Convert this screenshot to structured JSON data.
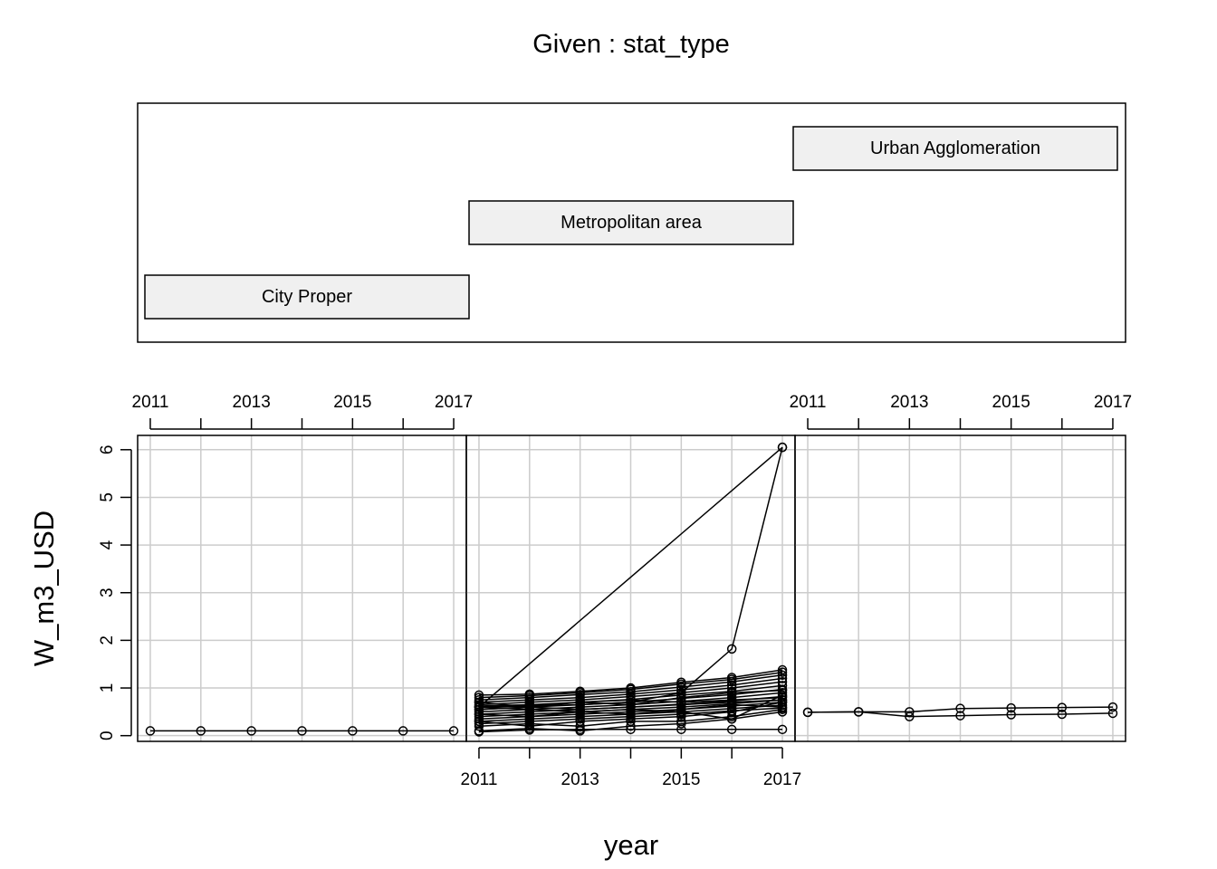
{
  "chart_data": {
    "type": "line",
    "title": "Given : stat_type",
    "xlabel": "year",
    "ylabel": "W_m3_USD",
    "x_ticks": [
      "2011",
      "2013",
      "2015",
      "2017"
    ],
    "y_ticks": [
      "0",
      "1",
      "2",
      "3",
      "4",
      "5",
      "6"
    ],
    "ylim": [
      -0.12,
      6.3
    ],
    "grid": true,
    "levels": [
      "City Proper",
      "Metropolitan area",
      "Urban Agglomeration"
    ],
    "panels": [
      {
        "label": "City Proper",
        "xlim": [
          2010.75,
          2017.25
        ],
        "series": [
          {
            "x": [
              2011,
              2012,
              2013,
              2014,
              2015,
              2016,
              2017
            ],
            "y": [
              0.1,
              0.1,
              0.1,
              0.1,
              0.1,
              0.1,
              0.1
            ]
          }
        ]
      },
      {
        "label": "Metropolitan area",
        "xlim": [
          2010.75,
          2017.25
        ],
        "series": [
          {
            "x": [
              2011,
              2017
            ],
            "y": [
              0.6,
              6.05
            ]
          },
          {
            "x": [
              2011,
              2012,
              2013,
              2014,
              2015,
              2016,
              2017
            ],
            "y": [
              0.6,
              0.62,
              0.65,
              0.7,
              0.9,
              1.82,
              6.05
            ]
          },
          {
            "x": [
              2011,
              2012,
              2013,
              2014,
              2015,
              2016,
              2017
            ],
            "y": [
              0.85,
              0.87,
              0.93,
              1.0,
              1.12,
              1.22,
              1.38
            ]
          },
          {
            "x": [
              2011,
              2012,
              2013,
              2014,
              2015,
              2016,
              2017
            ],
            "y": [
              0.8,
              0.84,
              0.9,
              0.97,
              1.08,
              1.18,
              1.33
            ]
          },
          {
            "x": [
              2011,
              2012,
              2013,
              2014,
              2015,
              2016,
              2017
            ],
            "y": [
              0.75,
              0.8,
              0.86,
              0.92,
              1.02,
              1.13,
              1.27
            ]
          },
          {
            "x": [
              2011,
              2012,
              2013,
              2014,
              2015,
              2016,
              2017
            ],
            "y": [
              0.7,
              0.75,
              0.8,
              0.87,
              0.96,
              1.06,
              1.2
            ]
          },
          {
            "x": [
              2011,
              2012,
              2013,
              2014,
              2015,
              2016,
              2017
            ],
            "y": [
              0.65,
              0.7,
              0.75,
              0.82,
              0.9,
              1.0,
              1.13
            ]
          },
          {
            "x": [
              2011,
              2012,
              2013,
              2014,
              2015,
              2016,
              2017
            ],
            "y": [
              0.6,
              0.64,
              0.7,
              0.76,
              0.85,
              0.93,
              1.05
            ]
          },
          {
            "x": [
              2011,
              2012,
              2013,
              2014,
              2015,
              2016,
              2017
            ],
            "y": [
              0.55,
              0.6,
              0.65,
              0.7,
              0.78,
              0.86,
              0.97
            ]
          },
          {
            "x": [
              2011,
              2012,
              2013,
              2014,
              2015,
              2016,
              2017
            ],
            "y": [
              0.5,
              0.55,
              0.6,
              0.65,
              0.72,
              0.8,
              0.9
            ]
          },
          {
            "x": [
              2011,
              2012,
              2013,
              2014,
              2015,
              2016,
              2017
            ],
            "y": [
              0.45,
              0.5,
              0.55,
              0.6,
              0.66,
              0.73,
              0.82
            ]
          },
          {
            "x": [
              2011,
              2012,
              2013,
              2014,
              2015,
              2016,
              2017
            ],
            "y": [
              0.4,
              0.45,
              0.5,
              0.55,
              0.6,
              0.67,
              0.75
            ]
          },
          {
            "x": [
              2011,
              2012,
              2013,
              2014,
              2015,
              2016,
              2017
            ],
            "y": [
              0.35,
              0.4,
              0.45,
              0.5,
              0.55,
              0.62,
              0.7
            ]
          },
          {
            "x": [
              2011,
              2012,
              2013,
              2014,
              2015,
              2016,
              2017
            ],
            "y": [
              0.3,
              0.35,
              0.4,
              0.45,
              0.5,
              0.57,
              0.64
            ]
          },
          {
            "x": [
              2011,
              2012,
              2013,
              2014,
              2015,
              2016,
              2017
            ],
            "y": [
              0.25,
              0.3,
              0.35,
              0.4,
              0.45,
              0.52,
              0.58
            ]
          },
          {
            "x": [
              2011,
              2012,
              2013,
              2014,
              2015,
              2016,
              2017
            ],
            "y": [
              0.6,
              0.55,
              0.5,
              0.45,
              0.55,
              0.65,
              0.6
            ]
          },
          {
            "x": [
              2011,
              2012,
              2013,
              2014,
              2015,
              2016,
              2017
            ],
            "y": [
              0.7,
              0.6,
              0.55,
              0.6,
              0.65,
              0.7,
              0.75
            ]
          },
          {
            "x": [
              2011,
              2012,
              2013,
              2014,
              2015,
              2016,
              2017
            ],
            "y": [
              0.3,
              0.2,
              0.3,
              0.35,
              0.4,
              0.5,
              0.7
            ]
          },
          {
            "x": [
              2011,
              2012,
              2013,
              2014,
              2015,
              2016,
              2017
            ],
            "y": [
              0.2,
              0.25,
              0.2,
              0.3,
              0.3,
              0.4,
              0.55
            ]
          },
          {
            "x": [
              2011,
              2012,
              2013,
              2014,
              2015,
              2016,
              2017
            ],
            "y": [
              0.1,
              0.15,
              0.1,
              0.2,
              0.25,
              0.35,
              0.5
            ]
          },
          {
            "x": [
              2011,
              2012,
              2013,
              2014,
              2015,
              2016,
              2017
            ],
            "y": [
              0.08,
              0.12,
              0.13,
              0.13,
              0.13,
              0.13,
              0.13
            ]
          },
          {
            "x": [
              2011,
              2012,
              2013,
              2014,
              2015,
              2016,
              2017
            ],
            "y": [
              0.45,
              0.4,
              0.5,
              0.55,
              0.5,
              0.35,
              0.85
            ]
          },
          {
            "x": [
              2011,
              2012,
              2013,
              2014,
              2015,
              2016,
              2017
            ],
            "y": [
              0.55,
              0.6,
              0.7,
              0.65,
              0.8,
              0.9,
              0.95
            ]
          },
          {
            "x": [
              2011,
              2012,
              2013,
              2014,
              2015,
              2016,
              2017
            ],
            "y": [
              0.62,
              0.65,
              0.7,
              0.75,
              0.7,
              0.75,
              0.8
            ]
          }
        ]
      },
      {
        "label": "Urban Agglomeration",
        "xlim": [
          2010.75,
          2017.25
        ],
        "series": [
          {
            "x": [
              2011,
              2012,
              2013,
              2014,
              2015,
              2016,
              2017
            ],
            "y": [
              0.49,
              0.5,
              0.5,
              0.57,
              0.58,
              0.59,
              0.6
            ]
          },
          {
            "x": [
              2011,
              2012,
              2013,
              2014,
              2015,
              2016,
              2017
            ],
            "y": [
              0.49,
              0.5,
              0.4,
              0.42,
              0.44,
              0.45,
              0.47
            ]
          }
        ]
      }
    ]
  }
}
